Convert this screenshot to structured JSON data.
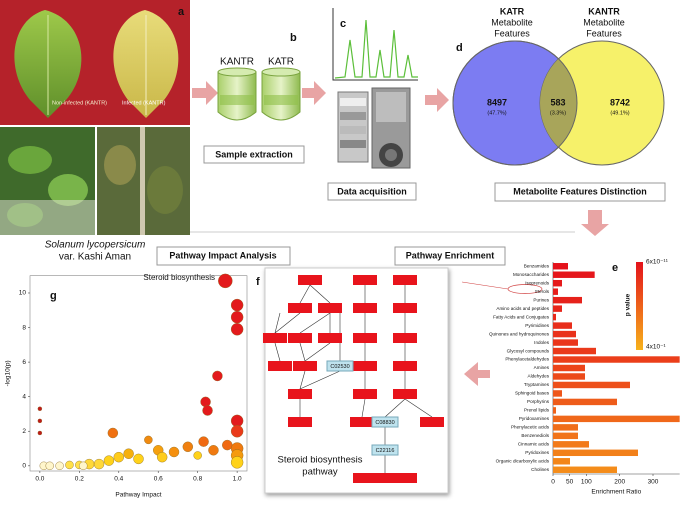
{
  "letters": {
    "a": "a",
    "b": "b",
    "c": "c",
    "d": "d",
    "e": "e",
    "f": "f",
    "g": "g"
  },
  "photos": {
    "noninfected": "Non-infected (KANTR)",
    "infected": "Infected (KANTR)",
    "species": "Solanum lycopersicum",
    "variety": "var. Kashi Aman"
  },
  "extraction": {
    "tubes": [
      "KANTR",
      "KATR"
    ],
    "caption": "Sample extraction"
  },
  "acquisition": {
    "caption": "Data acquisition"
  },
  "venn": {
    "left": {
      "name": "KATR",
      "subtitle": "Metabolite",
      "subtitle2": "Features",
      "count": "8497",
      "percent": "(47.7%)"
    },
    "middle": {
      "count": "583",
      "percent": "(3.3%)"
    },
    "right": {
      "name": "KANTR",
      "subtitle": "Metabolite",
      "subtitle2": "Features",
      "count": "8742",
      "percent": "(49.1%)"
    },
    "caption": "Metabolite Features Distinction"
  },
  "pathway": {
    "nodes": [
      "C02530",
      "C08830",
      "C22116"
    ],
    "caption": "Steroid biosynthesis",
    "caption2": "pathway"
  },
  "headings": {
    "impact": "Pathway Impact Analysis",
    "enrichment": "Pathway Enrichment"
  },
  "chart_data": [
    {
      "type": "hbar",
      "xlabel": "Enrichment Ratio",
      "categories": [
        "Benzamides",
        "Monosaccharides",
        "Isoprenoids",
        "Sterols",
        "Purines",
        "Amino acids and peptides",
        "Fatty Acids and Conjugates",
        "Pyrimidines",
        "Quinones and hydroquinones",
        "Indoles",
        "Glycosyl compounds",
        "Phenylacetaldehydes",
        "Amines",
        "Aldehydes",
        "Tryptamines",
        "Sphingoid bases",
        "Porphyrins",
        "Prenol lipids",
        "Pyridoxamines",
        "Phenylacetic acids",
        "Benzenediols",
        "Cinnamic acids",
        "Pyridoxines",
        "Organic dicarboxylic acids",
        "Cholines"
      ],
      "values": [
        45,
        125,
        27,
        15,
        87,
        27,
        9,
        57,
        69,
        75,
        129,
        380,
        96,
        96,
        231,
        27,
        192,
        9,
        380,
        75,
        75,
        108,
        255,
        51,
        192
      ],
      "colors": [
        "#e4121b",
        "#e5161b",
        "#e51a1b",
        "#e61e1b",
        "#e6221b",
        "#e7261b",
        "#e82a1b",
        "#e82e1b",
        "#e9321b",
        "#ea361b",
        "#ea3a1b",
        "#eb3e1a",
        "#ec441a",
        "#ec4a1a",
        "#ed501a",
        "#ee561a",
        "#ee5c1a",
        "#ef621a",
        "#f0681a",
        "#f06e1a",
        "#f1741a",
        "#f27a1a",
        "#f2801a",
        "#f3861a",
        "#f48c1a"
      ],
      "xlim": [
        0,
        380
      ],
      "xticks": [
        0,
        50,
        100,
        200,
        300
      ],
      "colorbar": {
        "label": "p value",
        "top": "6x10⁻¹¹",
        "bottom": "4x10⁻¹",
        "colors": [
          "#e4121b",
          "#f7b21b"
        ]
      }
    },
    {
      "type": "scatter",
      "xlabel": "Pathway Impact",
      "ylabel": "-log10(p)",
      "annotation": "Steroid biosynthesis",
      "x": [
        0.94,
        1,
        1,
        1,
        0.9,
        0.84,
        0.85,
        0,
        0,
        0,
        1,
        1,
        0.95,
        1,
        1,
        1,
        0.37,
        0.55,
        0.83,
        0.75,
        0.6,
        0.45,
        0.4,
        0.5,
        0.68,
        0.88,
        0.35,
        0.2,
        0.25,
        0.3,
        0.15,
        0.1,
        0.02,
        0.05,
        0.22,
        0.8,
        0.62
      ],
      "y": [
        10.7,
        9.3,
        8.6,
        7.9,
        5.2,
        3.7,
        3.2,
        3.3,
        2.6,
        1.9,
        2.6,
        2.0,
        1.2,
        1.0,
        0.6,
        0.2,
        1.9,
        1.5,
        1.4,
        1.1,
        0.9,
        0.7,
        0.5,
        0.4,
        0.8,
        0.9,
        0.3,
        0.05,
        0.1,
        0.1,
        0.05,
        0,
        0,
        0,
        0,
        0.6,
        0.5
      ],
      "sizes": [
        7,
        6,
        6,
        6,
        5,
        5,
        5,
        2,
        2,
        2,
        6,
        6,
        5,
        6,
        6,
        6,
        5,
        4,
        5,
        5,
        5,
        5,
        5,
        5,
        5,
        5,
        5,
        4,
        5,
        5,
        4,
        4,
        4,
        4,
        4,
        4,
        5
      ],
      "colors": [
        "#e31a1c",
        "#e31a1c",
        "#e31a1c",
        "#e31a1c",
        "#e31a1c",
        "#e31a1c",
        "#e31a1c",
        "#c0181a",
        "#c0181a",
        "#c0181a",
        "#e31a1c",
        "#ea3a1a",
        "#f06a12",
        "#f07a10",
        "#f59a0e",
        "#ffd21a",
        "#f07010",
        "#f08a10",
        "#f06a12",
        "#f08010",
        "#f5a00e",
        "#f5b00e",
        "#ffcc1a",
        "#ffd21a",
        "#f5900e",
        "#f07a10",
        "#ffd21a",
        "#ffe04a",
        "#ffd83a",
        "#ffd83a",
        "#ffe04a",
        "#fff6cc",
        "#fff6cc",
        "#fff6cc",
        "#fff6cc",
        "#ffd21a",
        "#ffcc1a"
      ],
      "xlim": [
        -0.05,
        1.05
      ],
      "ylim": [
        -0.3,
        11
      ],
      "xticks": [
        {
          "value": 0,
          "label": "0.0"
        },
        {
          "value": 0.2,
          "label": "0.2"
        },
        {
          "value": 0.4,
          "label": "0.4"
        },
        {
          "value": 0.6,
          "label": "0.6"
        },
        {
          "value": 0.8,
          "label": "0.8"
        },
        {
          "value": 1,
          "label": "1.0"
        }
      ],
      "yticks": [
        0,
        2,
        4,
        6,
        8,
        10
      ]
    }
  ]
}
